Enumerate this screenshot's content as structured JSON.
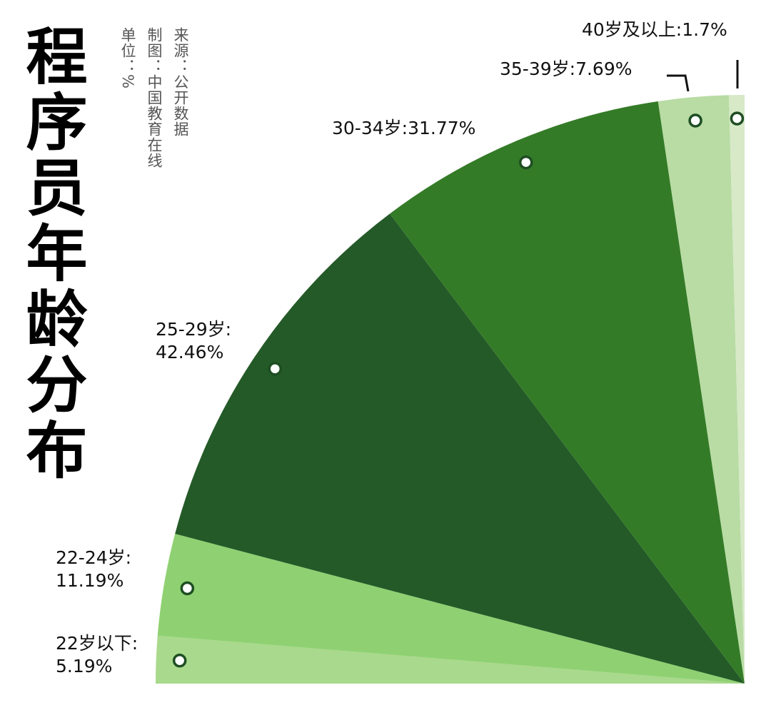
{
  "chart_data": {
    "type": "pie",
    "title": "程序员年龄分布",
    "notes": [
      "来源：公开数据",
      "制图：中国教育在线",
      "单位：%"
    ],
    "categories": [
      "22岁以下:",
      "22-24岁:",
      "25-29岁:",
      "30-34岁:",
      "35-39岁:",
      "40岁及以上:"
    ],
    "values": [
      5.19,
      11.19,
      42.46,
      31.77,
      7.69,
      1.7
    ],
    "value_labels": [
      "5.19%",
      "11.19%",
      "42.46%",
      "31.77%",
      "7.69%",
      "1.7%"
    ],
    "colors": [
      "#a9d98c",
      "#8fd172",
      "#245a28",
      "#347b27",
      "#b8dca4",
      "#d7e9c7"
    ]
  }
}
